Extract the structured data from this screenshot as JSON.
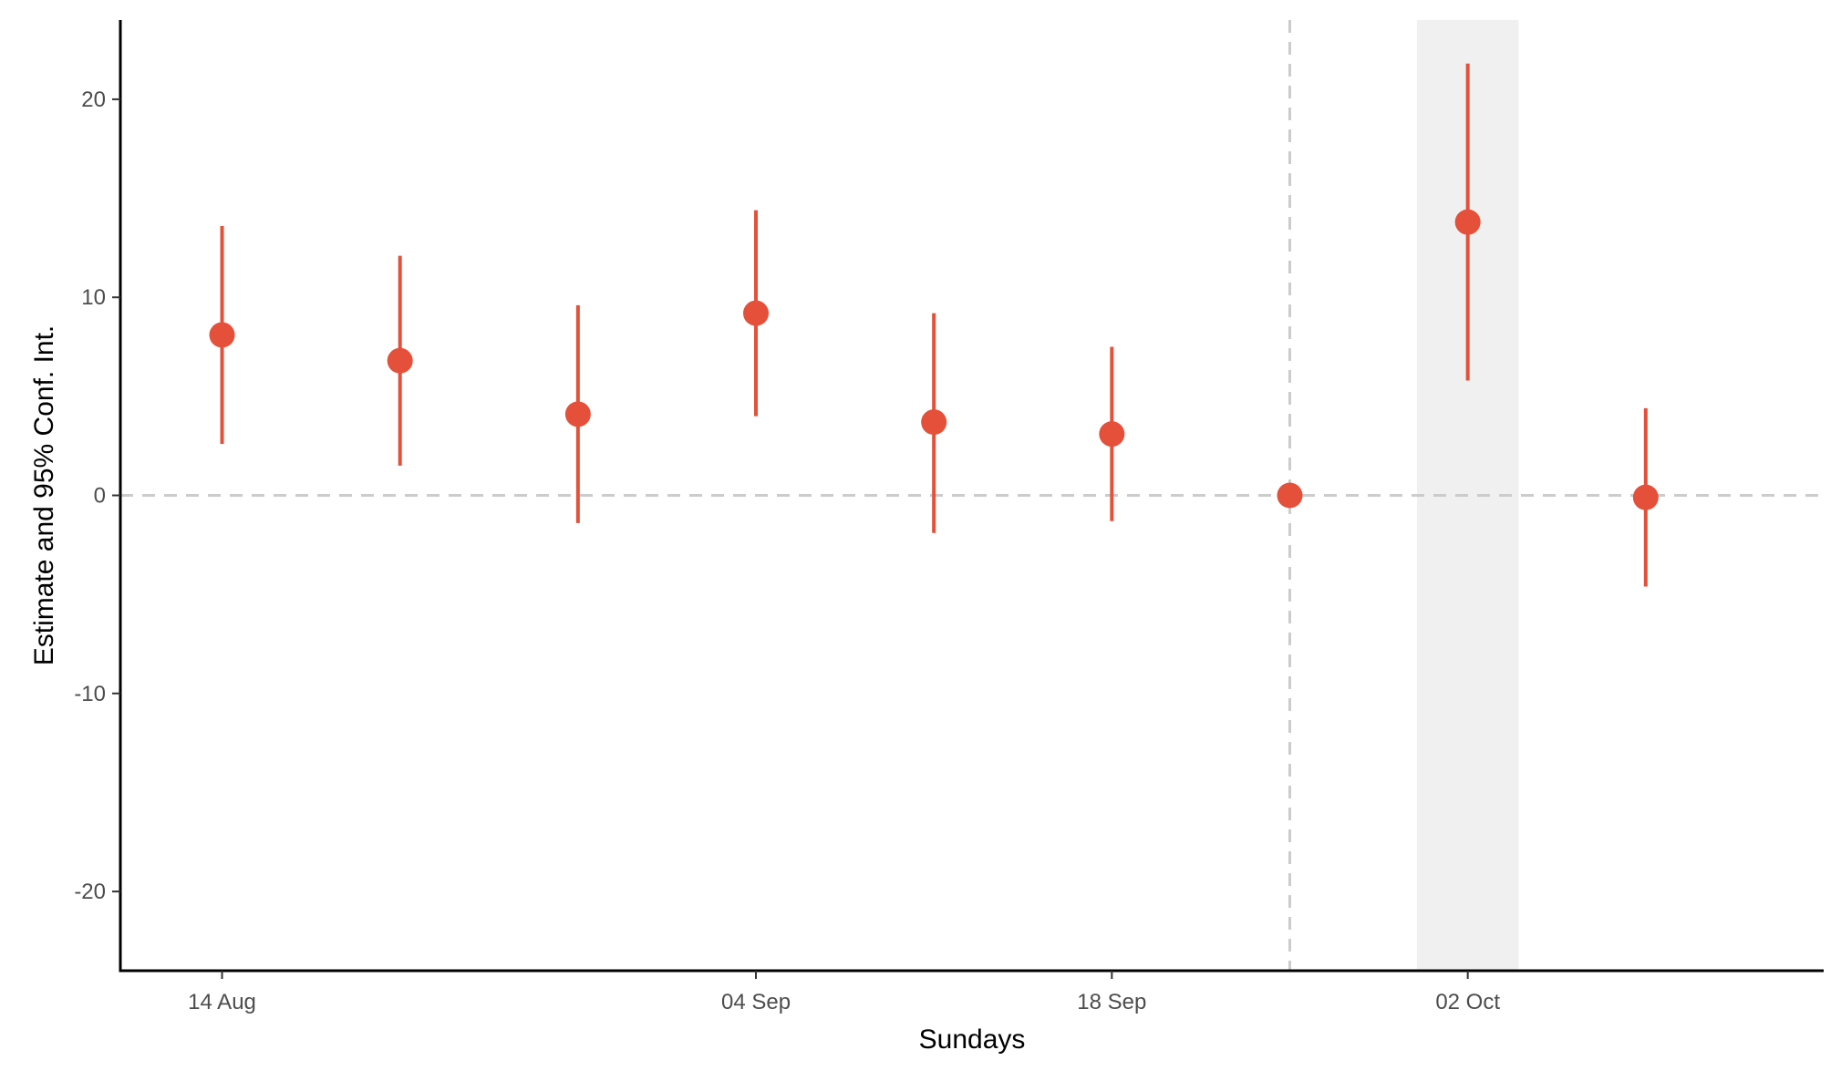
{
  "chart_data": {
    "type": "scatter",
    "subtype": "point-with-error-bars",
    "title": "",
    "xlabel": "Sundays",
    "ylabel": "Estimate and 95% Conf. Int.",
    "x_tick_labels": [
      {
        "date": "2016-08-14",
        "label": "14 Aug"
      },
      {
        "date": "2016-09-04",
        "label": "04 Sep"
      },
      {
        "date": "2016-09-18",
        "label": "18 Sep"
      },
      {
        "date": "2016-10-02",
        "label": "02 Oct"
      }
    ],
    "y_ticks": [
      -20,
      -10,
      0,
      10,
      20
    ],
    "xlim": [
      "2016-08-10",
      "2016-10-16"
    ],
    "ylim": [
      -24,
      24
    ],
    "series": [
      {
        "color": "#e4503a",
        "points": [
          {
            "x": "2016-08-14",
            "y": 8.1,
            "lower": 2.6,
            "upper": 13.6
          },
          {
            "x": "2016-08-21",
            "y": 6.8,
            "lower": 1.5,
            "upper": 12.1
          },
          {
            "x": "2016-08-28",
            "y": 4.1,
            "lower": -1.4,
            "upper": 9.6
          },
          {
            "x": "2016-09-04",
            "y": 9.2,
            "lower": 4.0,
            "upper": 14.4
          },
          {
            "x": "2016-09-11",
            "y": 3.7,
            "lower": -1.9,
            "upper": 9.2
          },
          {
            "x": "2016-09-18",
            "y": 3.1,
            "lower": -1.3,
            "upper": 7.5
          },
          {
            "x": "2016-09-25",
            "y": 0.0,
            "lower": 0.0,
            "upper": 0.0
          },
          {
            "x": "2016-10-02",
            "y": 13.8,
            "lower": 5.8,
            "upper": 21.8
          },
          {
            "x": "2016-10-09",
            "y": -0.1,
            "lower": -4.6,
            "upper": 4.4
          }
        ]
      }
    ],
    "reference_lines": {
      "horizontal": [
        0
      ],
      "vertical": [
        "2016-09-25"
      ],
      "style": "dashed",
      "color": "#cccccc"
    },
    "shaded_regions": [
      {
        "x_start": "2016-09-30",
        "x_end": "2016-10-04",
        "color": "#f0f0f0"
      }
    ],
    "grid": false,
    "legend": "none"
  }
}
